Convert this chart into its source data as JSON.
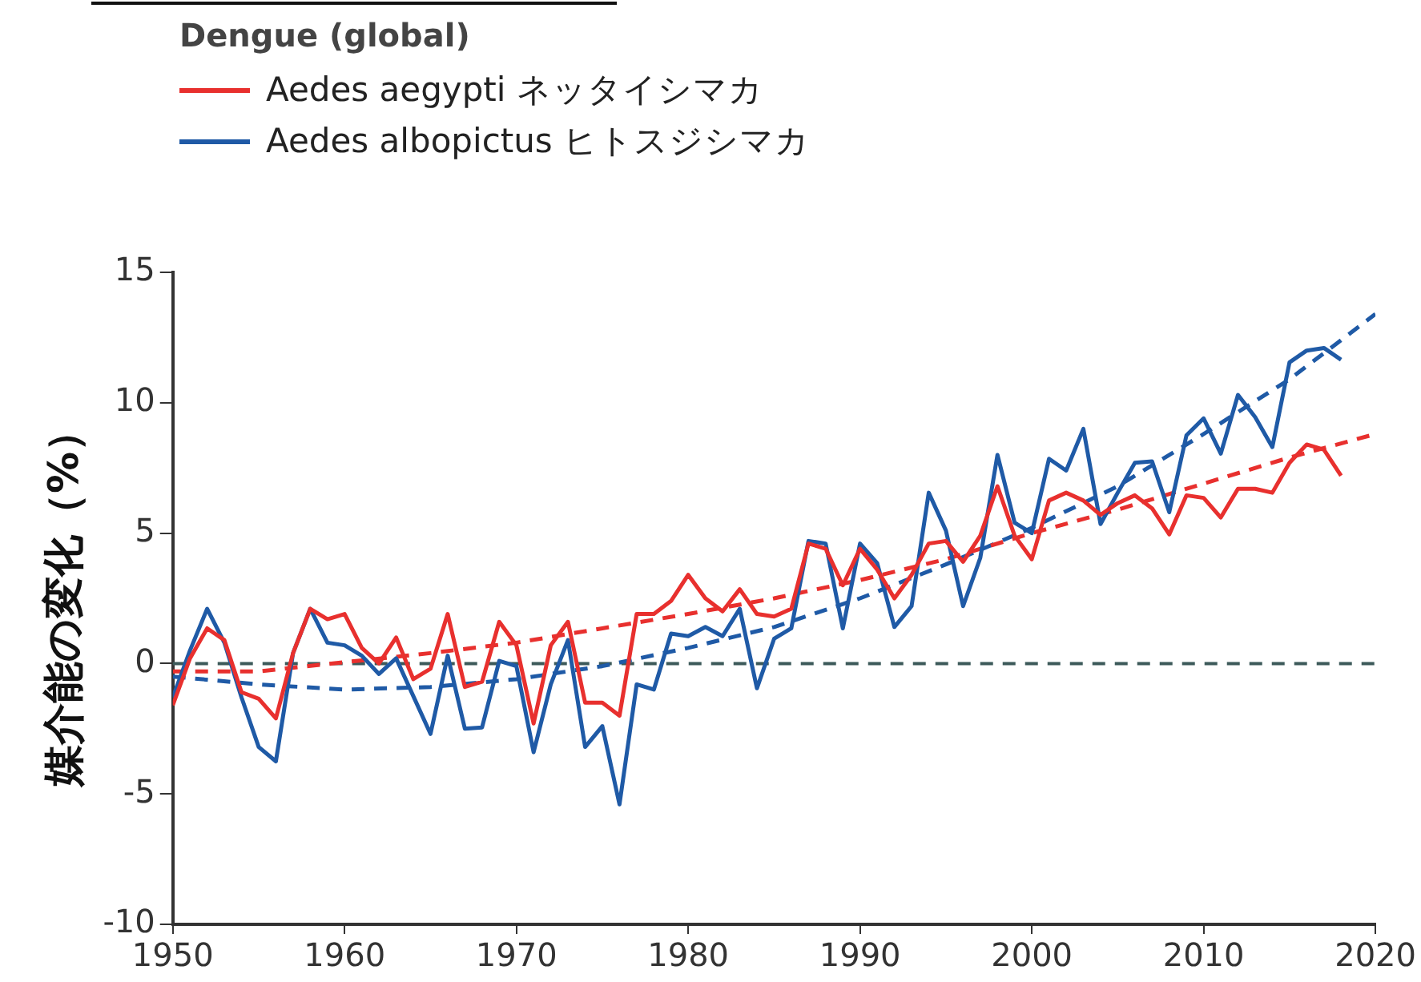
{
  "chart_data": {
    "type": "line",
    "legend_title": "Dengue (global)",
    "legend": "top left",
    "ylabel": "媒介能の変化（%）",
    "xlim": [
      1950,
      2020
    ],
    "xticks": [
      1950,
      1960,
      1970,
      1980,
      1990,
      2000,
      2010,
      2020
    ],
    "ylim": [
      -10,
      15
    ],
    "yticks": [
      -10,
      -5,
      0,
      5,
      10,
      15
    ],
    "ref_lines": [
      {
        "axis": "y",
        "value": 0,
        "color": "#3d5a5a",
        "line_style": "dashed"
      }
    ],
    "series": [
      {
        "name": "Aedes aegypti ネッタイシマカ",
        "type": "line",
        "color": "#e8302e",
        "x": [
          1950,
          1951,
          1952,
          1953,
          1954,
          1955,
          1956,
          1957,
          1958,
          1959,
          1960,
          1961,
          1962,
          1963,
          1964,
          1965,
          1966,
          1967,
          1968,
          1969,
          1970,
          1971,
          1972,
          1973,
          1974,
          1975,
          1976,
          1977,
          1978,
          1979,
          1980,
          1981,
          1982,
          1983,
          1984,
          1985,
          1986,
          1987,
          1988,
          1989,
          1990,
          1991,
          1992,
          1993,
          1994,
          1995,
          1996,
          1997,
          1998,
          1999,
          2000,
          2001,
          2002,
          2003,
          2004,
          2005,
          2006,
          2007,
          2008,
          2009,
          2010,
          2011,
          2012,
          2013,
          2014,
          2015,
          2016,
          2017,
          2018
        ],
        "values": [
          -1.6,
          0.2,
          1.35,
          0.9,
          -1.1,
          -1.35,
          -2.1,
          0.4,
          2.1,
          1.7,
          1.9,
          0.6,
          0,
          1.0,
          -0.6,
          -0.2,
          1.9,
          -0.9,
          -0.7,
          1.6,
          0.7,
          -2.3,
          0.7,
          1.6,
          -1.5,
          -1.5,
          -2.0,
          1.9,
          1.9,
          2.4,
          3.4,
          2.5,
          2.0,
          2.85,
          1.9,
          1.8,
          2.1,
          4.6,
          4.4,
          3.0,
          4.4,
          3.6,
          2.5,
          3.4,
          4.6,
          4.7,
          3.9,
          4.9,
          6.8,
          4.9,
          4.0,
          6.25,
          6.55,
          6.25,
          5.7,
          6.15,
          6.45,
          5.95,
          4.95,
          6.45,
          6.35,
          5.6,
          6.7,
          6.7,
          6.55,
          7.7,
          8.4,
          8.2,
          7.2
        ]
      },
      {
        "name": "Aedes albopictus ヒトスジシマカ",
        "type": "line",
        "color": "#1f5aa6",
        "x": [
          1950,
          1951,
          1952,
          1953,
          1954,
          1955,
          1956,
          1957,
          1958,
          1959,
          1960,
          1961,
          1962,
          1963,
          1964,
          1965,
          1966,
          1967,
          1968,
          1969,
          1970,
          1971,
          1972,
          1973,
          1974,
          1975,
          1976,
          1977,
          1978,
          1979,
          1980,
          1981,
          1982,
          1983,
          1984,
          1985,
          1986,
          1987,
          1988,
          1989,
          1990,
          1991,
          1992,
          1993,
          1994,
          1995,
          1996,
          1997,
          1998,
          1999,
          2000,
          2001,
          2002,
          2003,
          2004,
          2005,
          2006,
          2007,
          2008,
          2009,
          2010,
          2011,
          2012,
          2013,
          2014,
          2015,
          2016,
          2017,
          2018
        ],
        "values": [
          -1.3,
          0.5,
          2.1,
          0.8,
          -1.3,
          -3.2,
          -3.75,
          0.4,
          2.1,
          0.8,
          0.7,
          0.3,
          -0.4,
          0.2,
          -1.25,
          -2.7,
          0.3,
          -2.5,
          -2.45,
          0.1,
          -0.1,
          -3.4,
          -0.8,
          0.9,
          -3.2,
          -2.4,
          -5.4,
          -0.8,
          -1.0,
          1.15,
          1.05,
          1.4,
          1.05,
          2.1,
          -0.95,
          0.95,
          1.35,
          4.7,
          4.6,
          1.35,
          4.6,
          3.85,
          1.4,
          2.2,
          6.55,
          5.1,
          2.2,
          4.05,
          8.0,
          5.4,
          5.0,
          7.85,
          7.4,
          9.0,
          5.35,
          6.55,
          7.7,
          7.75,
          5.8,
          8.75,
          9.4,
          8.05,
          10.3,
          9.45,
          8.3,
          11.55,
          12.0,
          12.1,
          11.65
        ]
      },
      {
        "type": "line",
        "line_style": "dashed",
        "color": "#e8302e",
        "x": [
          1950,
          1955,
          1960,
          1965,
          1970,
          1975,
          1980,
          1985,
          1990,
          1995,
          2000,
          2005,
          2010,
          2015,
          2020
        ],
        "values": [
          -0.3,
          -0.3,
          0.05,
          0.4,
          0.8,
          1.35,
          1.9,
          2.5,
          3.2,
          4.0,
          5.0,
          5.9,
          6.9,
          7.9,
          8.8
        ]
      },
      {
        "type": "line",
        "line_style": "dashed",
        "color": "#1f5aa6",
        "x": [
          1950,
          1955,
          1960,
          1965,
          1970,
          1975,
          1980,
          1985,
          1990,
          1995,
          2000,
          2005,
          2010,
          2015,
          2020
        ],
        "values": [
          -0.5,
          -0.8,
          -1.0,
          -0.9,
          -0.6,
          -0.1,
          0.6,
          1.4,
          2.5,
          3.8,
          5.2,
          6.8,
          8.8,
          10.9,
          13.4
        ]
      }
    ]
  }
}
